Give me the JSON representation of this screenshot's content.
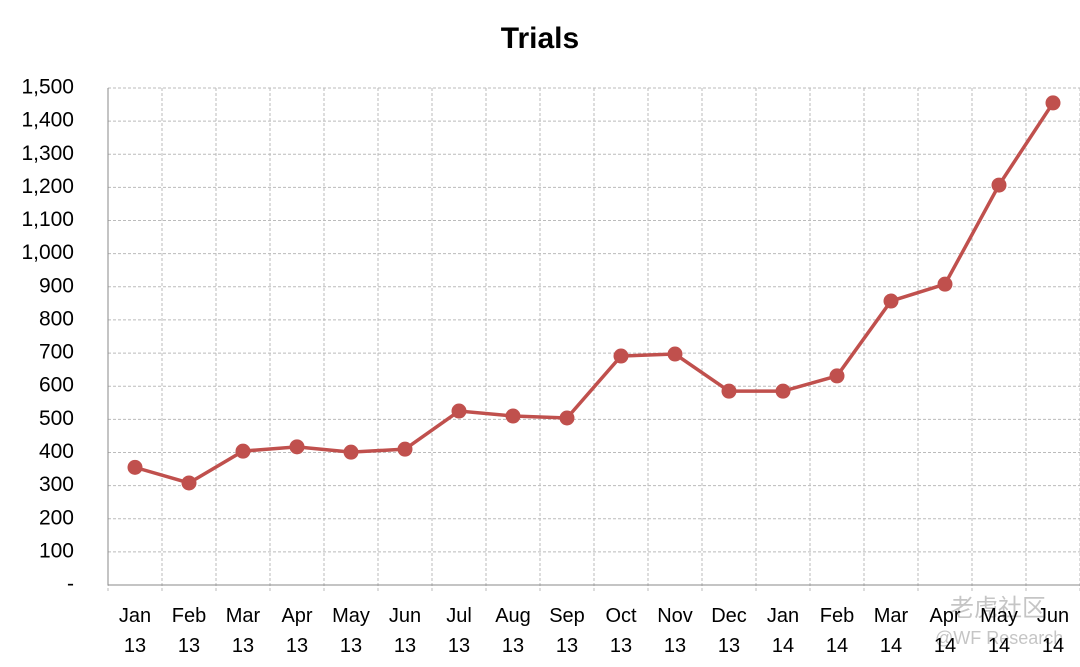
{
  "chart_data": {
    "type": "line",
    "title": "Trials",
    "categories": [
      "Jan 13",
      "Feb 13",
      "Mar 13",
      "Apr 13",
      "May 13",
      "Jun 13",
      "Jul 13",
      "Aug 13",
      "Sep 13",
      "Oct 13",
      "Nov 13",
      "Dec 13",
      "Jan 14",
      "Feb 14",
      "Mar 14",
      "Apr 14",
      "May 14",
      "Jun 14"
    ],
    "series": [
      {
        "name": "Trials",
        "color": "#c0504d",
        "values": [
          355,
          308,
          404,
          417,
          401,
          410,
          525,
          510,
          504,
          691,
          697,
          585,
          585,
          631,
          857,
          908,
          1207,
          1455
        ]
      }
    ],
    "ylim": [
      0,
      1500
    ],
    "yticks": [
      {
        "value": 0,
        "label": "-"
      },
      100,
      200,
      300,
      400,
      500,
      600,
      700,
      800,
      900,
      {
        "value": 1000,
        "label": "1,000"
      },
      {
        "value": 1100,
        "label": "1,100"
      },
      {
        "value": 1200,
        "label": "1,200"
      },
      {
        "value": 1300,
        "label": "1,300"
      },
      {
        "value": 1400,
        "label": "1,400"
      },
      {
        "value": 1500,
        "label": "1,500"
      }
    ],
    "grid": true,
    "watermark": [
      "老虎社区",
      "@WF Research"
    ]
  }
}
